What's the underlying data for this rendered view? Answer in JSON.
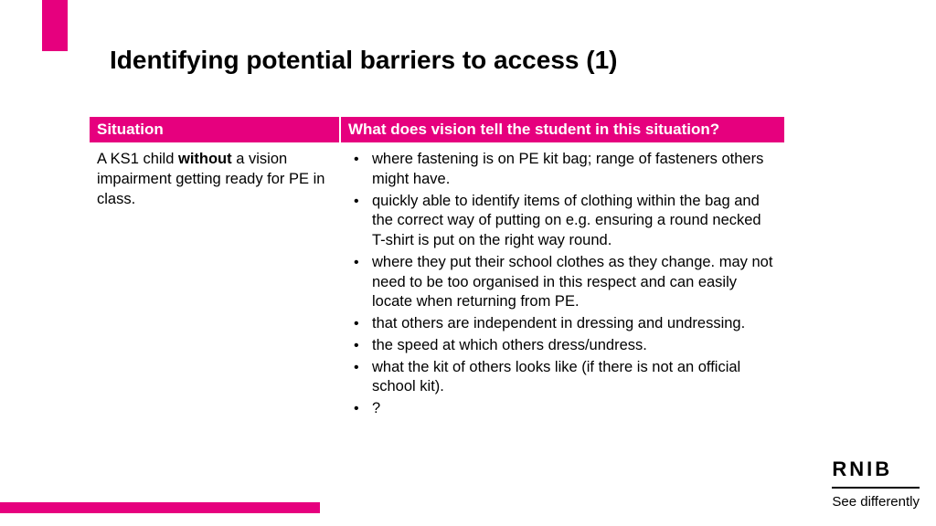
{
  "colors": {
    "accent": "#e6007e",
    "text": "#000000",
    "bg": "#ffffff",
    "header_text": "#ffffff"
  },
  "title": "Identifying potential barriers to access (1)",
  "table": {
    "headers": {
      "situation": "Situation",
      "vision": "What does vision tell the student in this situation?"
    },
    "situation": {
      "pre": "A KS1 child ",
      "bold": "without",
      "post": " a vision impairment getting ready for PE in class."
    },
    "bullets": [
      "where fastening is on PE kit bag; range of fasteners others might have.",
      "quickly able to identify items of clothing within the bag and the correct way of putting on e.g. ensuring a round necked T-shirt is put on the right way round.",
      "where they put their school clothes as they change. may not need to be too organised in this respect and can easily locate when returning from PE.",
      "that others are independent in dressing and undressing.",
      "the speed at which others dress/undress.",
      "what the kit of others looks like (if there is not an official school kit).",
      "?"
    ]
  },
  "logo": {
    "name": "RNIB",
    "tagline": "See differently"
  }
}
